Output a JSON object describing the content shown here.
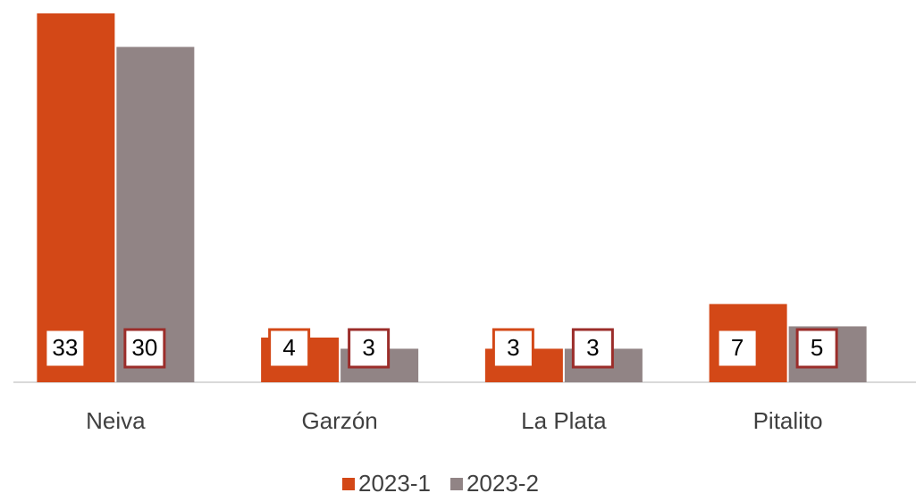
{
  "chart_data": {
    "type": "bar",
    "categories": [
      "Neiva",
      "Garzón",
      "La Plata",
      "Pitalito"
    ],
    "series": [
      {
        "name": "2023-1",
        "color": "#d34817",
        "label_border": "#d34817",
        "values": [
          33,
          4,
          3,
          7
        ]
      },
      {
        "name": "2023-2",
        "color": "#918485",
        "label_border": "#9b2d2a",
        "values": [
          30,
          3,
          3,
          5
        ]
      }
    ],
    "data_labels": true,
    "legend": "bottom"
  }
}
